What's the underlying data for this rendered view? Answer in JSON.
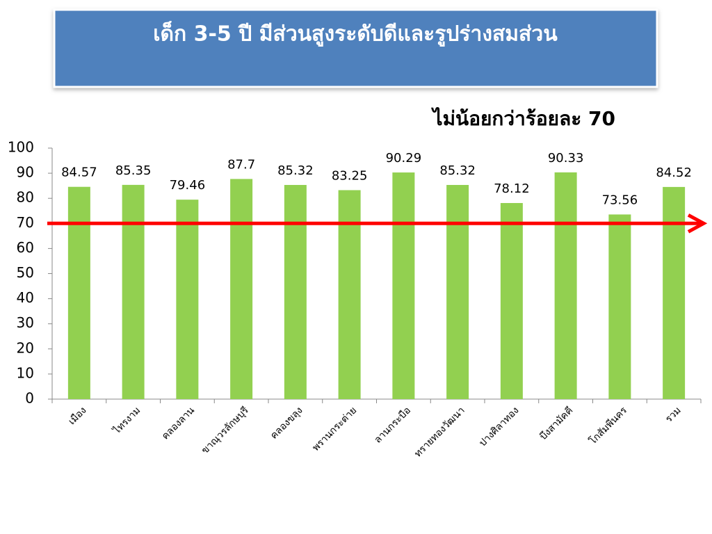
{
  "chart_data": {
    "type": "bar",
    "title": "เด็ก 3-5 ปี มีส่วนสูงระดับดีและรูปร่างสมส่วน",
    "annotation": "ไม่น้อยกว่าร้อยละ  70",
    "categories": [
      "เมือง",
      "ไทรงาม",
      "คลองลาน",
      "ขาณุวรลักษบุรี",
      "คลองขลุง",
      "พรานกระต่าย",
      "ลานกระบือ",
      "ทรายทองวัฒนา",
      "ปางศิลาทอง",
      "บึงสามัคคี",
      "โกสัมพีนคร",
      "รวม"
    ],
    "values": [
      84.57,
      85.35,
      79.46,
      87.7,
      85.32,
      83.25,
      90.29,
      85.32,
      78.12,
      90.33,
      73.56,
      84.52
    ],
    "color": "#92d050",
    "ylim": [
      0,
      100
    ],
    "yticks": [
      0,
      10,
      20,
      30,
      40,
      50,
      60,
      70,
      80,
      90,
      100
    ],
    "reference_line": {
      "value": 70,
      "color": "#ff0000"
    }
  }
}
